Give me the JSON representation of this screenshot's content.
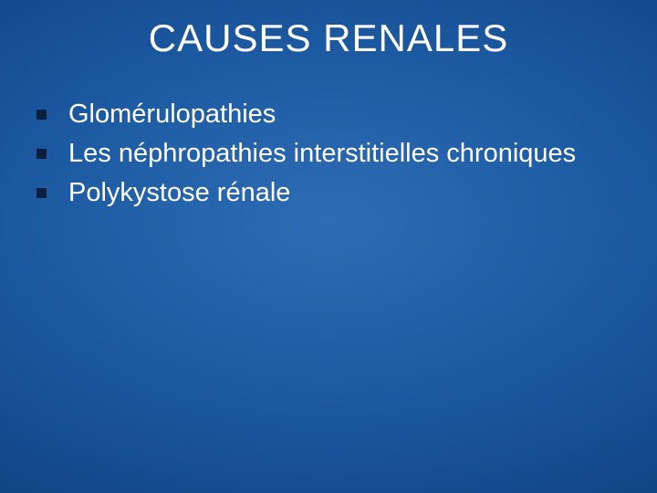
{
  "slide": {
    "title": "CAUSES RENALES",
    "title_color": "#ffffff",
    "title_fontsize": 42,
    "background_gradient": {
      "type": "radial",
      "center_color": "#2e6db5",
      "mid_color": "#1d5ba3",
      "outer_color": "#0e3f7d",
      "edge_color": "#052b5c"
    },
    "bullet_color": "#0a1f3d",
    "bullet_size": 11,
    "body_color": "#ffffff",
    "body_fontsize": 29,
    "items": [
      {
        "text": "Glomérulopathies"
      },
      {
        "text": "Les néphropathies interstitielles chroniques"
      },
      {
        "text": "Polykystose rénale"
      }
    ]
  }
}
